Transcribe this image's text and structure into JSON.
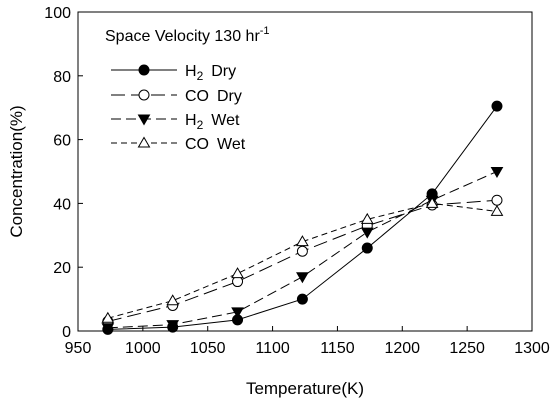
{
  "chart_data": {
    "type": "line",
    "xlabel": "Temperature(K)",
    "ylabel": "Concentration(%)",
    "xlim": [
      950,
      1300
    ],
    "ylim": [
      0,
      100
    ],
    "xticks": [
      950,
      1000,
      1050,
      1100,
      1150,
      1200,
      1250,
      1300
    ],
    "yticks": [
      0,
      20,
      40,
      60,
      80,
      100
    ],
    "grid": false,
    "legend_position": "top-left",
    "legend_title": {
      "text": "Space Velocity 130 hr",
      "superscript": "-1"
    },
    "series": [
      {
        "name": "H2 Dry",
        "label_main": "H",
        "label_sub": "2",
        "label_tail": "Dry",
        "marker": "filled-circle",
        "line_style": "solid",
        "x": [
          973,
          1023,
          1073,
          1123,
          1173,
          1223,
          1273
        ],
        "y": [
          0.5,
          1.2,
          3.5,
          10,
          26,
          43,
          70.5
        ]
      },
      {
        "name": "CO Dry",
        "label_main": "CO",
        "label_sub": "",
        "label_tail": "Dry",
        "marker": "open-circle",
        "line_style": "long-dash",
        "x": [
          973,
          1023,
          1073,
          1123,
          1173,
          1223,
          1273
        ],
        "y": [
          3,
          8,
          15.5,
          25,
          33,
          39.5,
          41
        ]
      },
      {
        "name": "H2 Wet",
        "label_main": "H",
        "label_sub": "2",
        "label_tail": "Wet",
        "marker": "filled-triangle-down",
        "line_style": "medium-dash",
        "x": [
          973,
          1023,
          1073,
          1123,
          1173,
          1223,
          1273
        ],
        "y": [
          1,
          2,
          6,
          17,
          31,
          41,
          50
        ]
      },
      {
        "name": "CO Wet",
        "label_main": "CO",
        "label_sub": "",
        "label_tail": "Wet",
        "marker": "open-triangle-up",
        "line_style": "short-dash",
        "x": [
          973,
          1023,
          1073,
          1123,
          1173,
          1223,
          1273
        ],
        "y": [
          4,
          9.5,
          18,
          28,
          35,
          40,
          37.5
        ]
      }
    ]
  }
}
